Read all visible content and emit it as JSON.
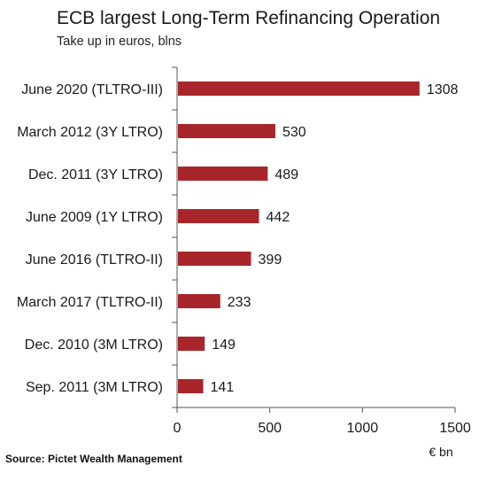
{
  "chart_data": {
    "type": "bar",
    "orientation": "horizontal",
    "title": "ECB largest Long-Term Refinancing Operation",
    "subtitle": "Take up in euros, blns",
    "categories": [
      "June 2020 (TLTRO-III)",
      "March 2012 (3Y LTRO)",
      "Dec. 2011 (3Y LTRO)",
      "June 2009 (1Y LTRO)",
      "June 2016 (TLTRO-II)",
      "March 2017 (TLTRO-II)",
      "Dec. 2010 (3M LTRO)",
      "Sep. 2011  (3M LTRO)"
    ],
    "values": [
      1308,
      530,
      489,
      442,
      399,
      233,
      149,
      141
    ],
    "xlim": [
      0,
      1500
    ],
    "xticks": [
      0,
      500,
      1000,
      1500
    ],
    "xlabel": "€ bn",
    "bar_color": "#a8262b",
    "grid": false
  },
  "source": "Source: Pictet Wealth Management"
}
